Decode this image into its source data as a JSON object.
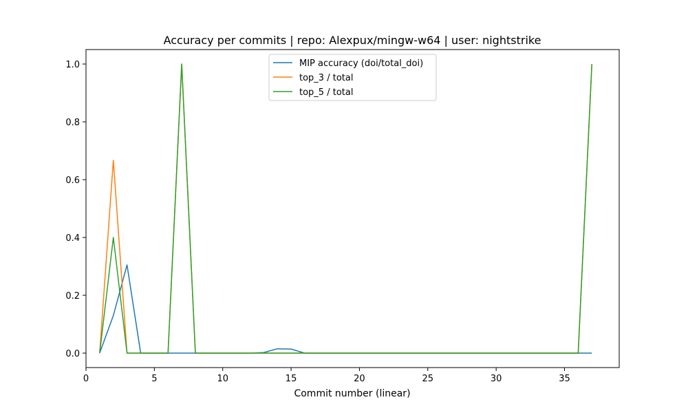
{
  "chart_data": {
    "type": "line",
    "title": "Accuracy per commits | repo: Alexpux/mingw-w64 | user: nightstrike",
    "xlabel": "Commit number (linear)",
    "ylabel": "",
    "xlim": [
      0,
      39
    ],
    "ylim": [
      -0.05,
      1.05
    ],
    "xticks": [
      0,
      5,
      10,
      15,
      20,
      25,
      30,
      35
    ],
    "yticks": [
      0.0,
      0.2,
      0.4,
      0.6,
      0.8,
      1.0
    ],
    "xtick_labels": [
      "0",
      "5",
      "10",
      "15",
      "20",
      "25",
      "30",
      "35"
    ],
    "ytick_labels": [
      "0.0",
      "0.2",
      "0.4",
      "0.6",
      "0.8",
      "1.0"
    ],
    "grid": false,
    "legend_position": "top-center",
    "x": [
      1,
      2,
      3,
      4,
      5,
      6,
      7,
      8,
      9,
      10,
      11,
      12,
      13,
      14,
      15,
      16,
      17,
      18,
      19,
      20,
      21,
      22,
      23,
      24,
      25,
      26,
      27,
      28,
      29,
      30,
      31,
      32,
      33,
      34,
      35,
      36,
      37
    ],
    "series": [
      {
        "name": "MIP accuracy (doi/total_doi)",
        "color": "#1f77b4",
        "values": [
          0.0,
          0.13,
          0.305,
          0.0,
          0.0,
          0.0,
          0.0,
          0.0,
          0.0,
          0.0,
          0.0,
          0.0,
          0.002,
          0.015,
          0.014,
          0.0,
          0.0,
          0.0,
          0.0,
          0.0,
          0.0,
          0.0,
          0.0,
          0.0,
          0.0,
          0.0,
          0.0,
          0.0,
          0.0,
          0.0,
          0.0,
          0.0,
          0.0,
          0.0,
          0.0,
          0.0,
          0.0
        ]
      },
      {
        "name": "top_3 / total",
        "color": "#ff7f0e",
        "values": [
          0.0,
          0.667,
          0.0,
          0.0,
          0.0,
          0.0,
          1.0,
          0.0,
          0.0,
          0.0,
          0.0,
          0.0,
          0.0,
          0.0,
          0.0,
          0.0,
          0.0,
          0.0,
          0.0,
          0.0,
          0.0,
          0.0,
          0.0,
          0.0,
          0.0,
          0.0,
          0.0,
          0.0,
          0.0,
          0.0,
          0.0,
          0.0,
          0.0,
          0.0,
          0.0,
          0.0,
          1.0
        ]
      },
      {
        "name": "top_5 / total",
        "color": "#2ca02c",
        "values": [
          0.0,
          0.4,
          0.0,
          0.0,
          0.0,
          0.0,
          1.0,
          0.0,
          0.0,
          0.0,
          0.0,
          0.0,
          0.0,
          0.0,
          0.0,
          0.0,
          0.0,
          0.0,
          0.0,
          0.0,
          0.0,
          0.0,
          0.0,
          0.0,
          0.0,
          0.0,
          0.0,
          0.0,
          0.0,
          0.0,
          0.0,
          0.0,
          0.0,
          0.0,
          0.0,
          0.0,
          1.0
        ]
      }
    ]
  }
}
